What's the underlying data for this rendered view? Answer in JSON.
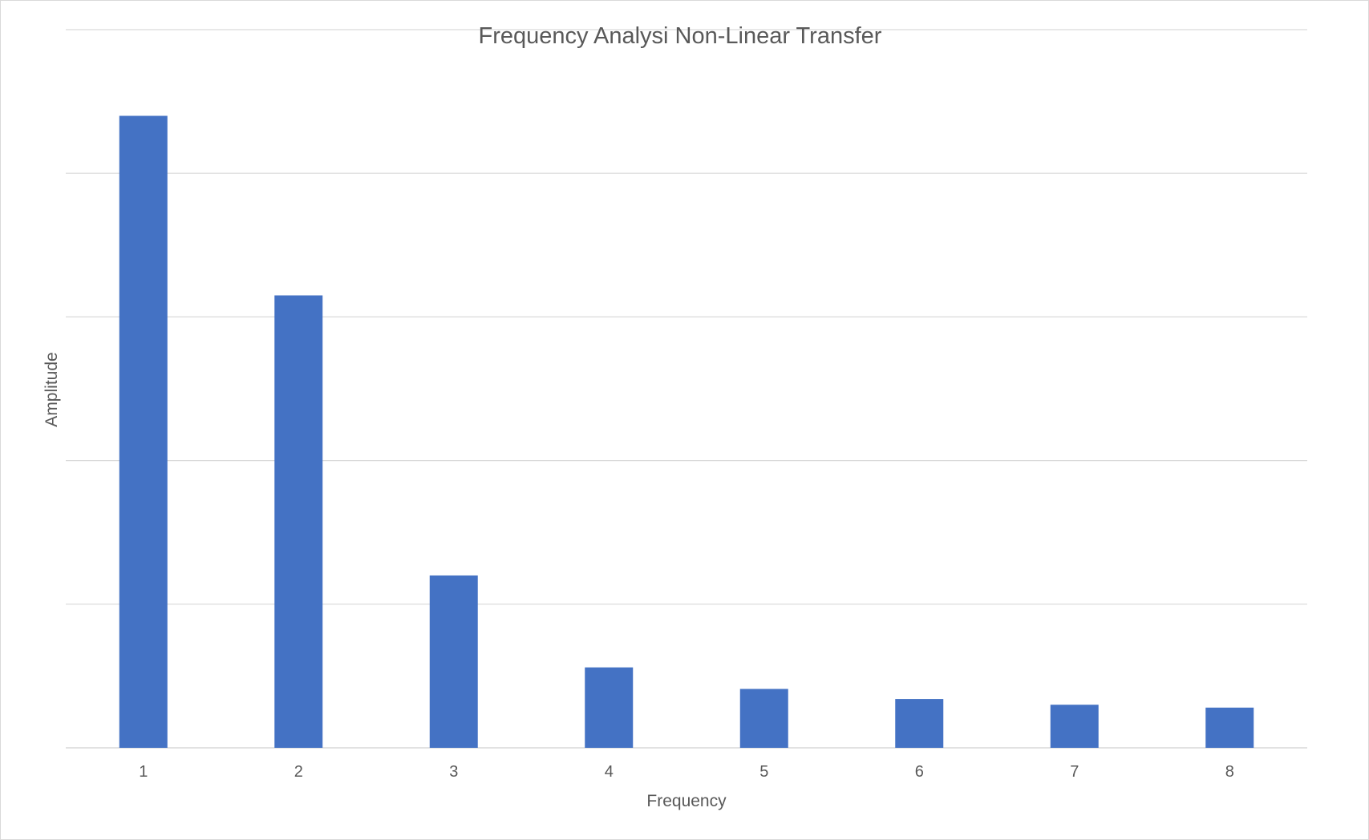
{
  "chart_data": {
    "type": "bar",
    "title": "Frequency Analysi Non-Linear Transfer",
    "xlabel": "Frequency",
    "ylabel": "Amplitude",
    "categories": [
      "1",
      "2",
      "3",
      "4",
      "5",
      "6",
      "7",
      "8"
    ],
    "values": [
      4.4,
      3.15,
      1.2,
      0.56,
      0.41,
      0.34,
      0.3,
      0.28
    ],
    "ylim": [
      0,
      5
    ],
    "y_tick_labels_visible": false,
    "grid": true,
    "legend": "none",
    "colors": {
      "bar": "#4472c4",
      "gridline": "#d9d9d9",
      "text": "#595959",
      "border": "#d9d9d9"
    }
  }
}
